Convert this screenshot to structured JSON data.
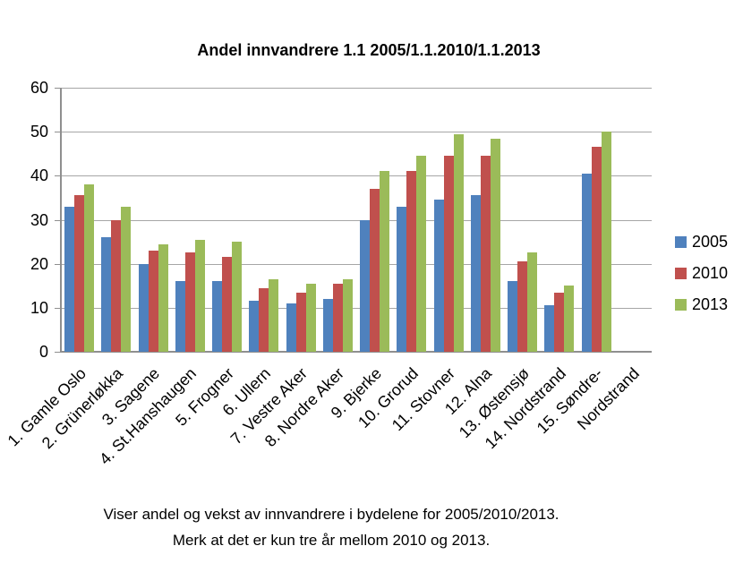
{
  "page": {
    "caption_line1": "Viser andel og vekst av innvandrere i bydelene for 2005/2010/2013.",
    "caption_line2": "Merk at det er kun tre år mellom 2010 og 2013."
  },
  "chart_data": {
    "type": "bar",
    "title": "Andel innvandrere 1.1 2005/1.1.2010/1.1.2013",
    "categories": [
      "1. Gamle Oslo",
      "2. Grünerløkka",
      "3. Sagene",
      "4. St.Hanshaugen",
      "5. Frogner",
      "6. Ullern",
      "7. Vestre Aker",
      "8. Nordre Aker",
      "9. Bjerke",
      "10. Grorud",
      "11. Stovner",
      "12. Alna",
      "13. Østensjø",
      "14. Nordstrand",
      "15. Søndre-",
      "Nordstrand"
    ],
    "series": [
      {
        "name": "2005",
        "color": "#4F81BD",
        "values": [
          33,
          26,
          20,
          16,
          16,
          11.5,
          11,
          12,
          30,
          33,
          34.5,
          35.5,
          16,
          10.5,
          40.5,
          null
        ]
      },
      {
        "name": "2010",
        "color": "#C0504D",
        "values": [
          35.5,
          30,
          23,
          22.5,
          21.5,
          14.5,
          13.5,
          15.5,
          37,
          41,
          44.5,
          44.5,
          20.5,
          13.5,
          46.5,
          null
        ]
      },
      {
        "name": "2013",
        "color": "#9BBB59",
        "values": [
          38,
          33,
          24.5,
          25.5,
          25,
          16.5,
          15.5,
          16.5,
          41,
          44.5,
          49.5,
          48.5,
          22.5,
          15,
          50,
          null
        ]
      }
    ],
    "ylim": [
      0,
      60
    ],
    "ytick_step": 10,
    "yticks": [
      0,
      10,
      20,
      30,
      40,
      50,
      60
    ],
    "grid": true,
    "legend_position": "right",
    "gridline_color": "#A6A6A6",
    "axis_color": "#8F8F8F",
    "text_color": "#000000"
  }
}
